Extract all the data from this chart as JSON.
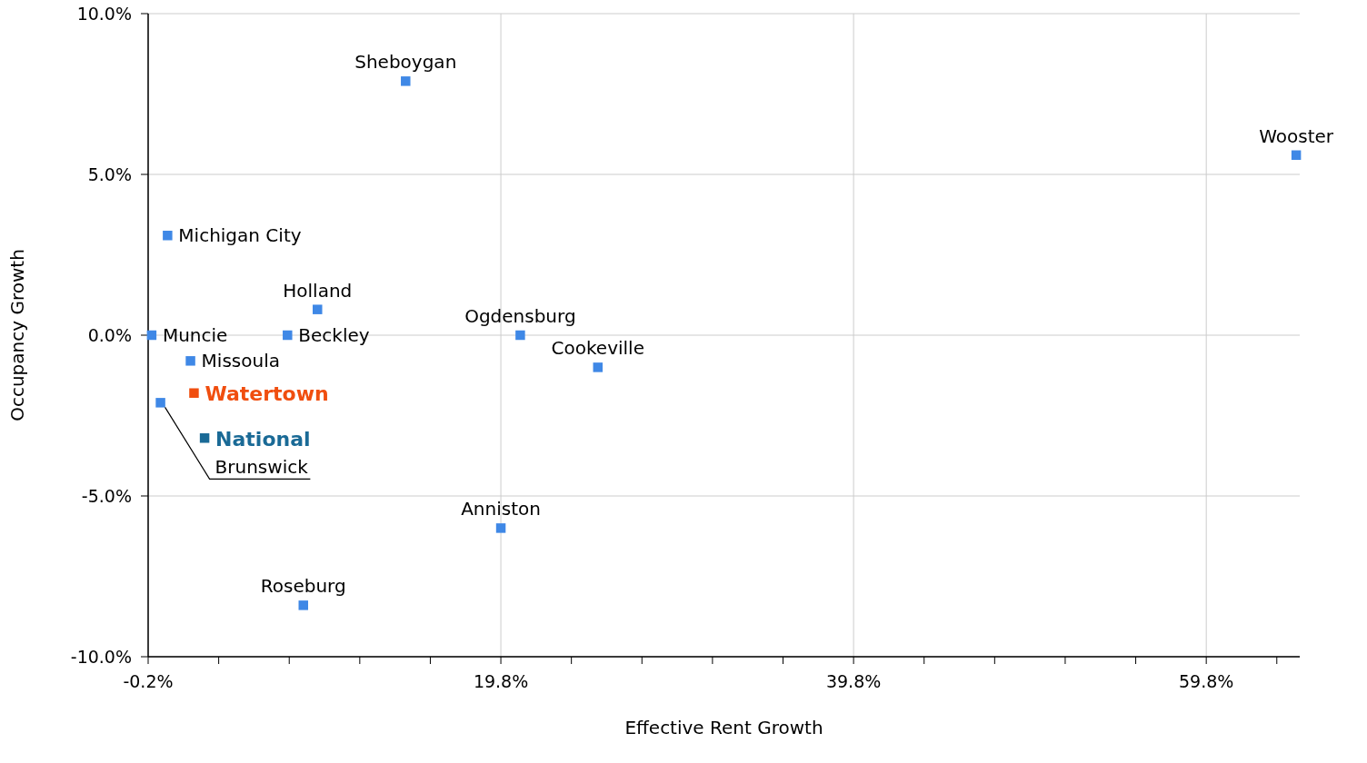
{
  "chart_data": {
    "type": "scatter",
    "xlabel": "Effective Rent Growth",
    "ylabel": "Occupancy Growth",
    "marker": "square",
    "grid": true,
    "xlim": [
      -0.2,
      65.1
    ],
    "ylim": [
      -10,
      10
    ],
    "xticks": [
      {
        "value": -0.2,
        "label": "-0.2%"
      },
      {
        "value": 3.8,
        "label": null
      },
      {
        "value": 7.8,
        "label": null
      },
      {
        "value": 11.8,
        "label": null
      },
      {
        "value": 15.8,
        "label": null
      },
      {
        "value": 19.8,
        "label": "19.8%"
      },
      {
        "value": 23.8,
        "label": null
      },
      {
        "value": 27.8,
        "label": null
      },
      {
        "value": 31.8,
        "label": null
      },
      {
        "value": 35.8,
        "label": null
      },
      {
        "value": 39.8,
        "label": "39.8%"
      },
      {
        "value": 43.8,
        "label": null
      },
      {
        "value": 47.8,
        "label": null
      },
      {
        "value": 51.8,
        "label": null
      },
      {
        "value": 55.8,
        "label": null
      },
      {
        "value": 59.8,
        "label": "59.8%"
      },
      {
        "value": 63.8,
        "label": null
      }
    ],
    "yticks": [
      {
        "value": -10,
        "label": "-10.0%"
      },
      {
        "value": -5,
        "label": "-5.0%"
      },
      {
        "value": 0,
        "label": "0.0%"
      },
      {
        "value": 5,
        "label": "5.0%"
      },
      {
        "value": 10,
        "label": "10.0%"
      }
    ],
    "series": [
      {
        "name": "Sheboygan",
        "color": "#3f88e6",
        "x": [
          14.4
        ],
        "values": [
          7.9
        ]
      },
      {
        "name": "Wooster",
        "color": "#3f88e6",
        "x": [
          64.9
        ],
        "values": [
          5.6
        ]
      },
      {
        "name": "Michigan City",
        "color": "#3f88e6",
        "x": [
          0.9
        ],
        "values": [
          3.1
        ]
      },
      {
        "name": "Holland",
        "color": "#3f88e6",
        "x": [
          9.4
        ],
        "values": [
          0.8
        ]
      },
      {
        "name": "Ogdensburg",
        "color": "#3f88e6",
        "x": [
          20.9
        ],
        "values": [
          0.0
        ]
      },
      {
        "name": "Muncie",
        "color": "#3f88e6",
        "x": [
          0.0
        ],
        "values": [
          0.0
        ]
      },
      {
        "name": "Beckley",
        "color": "#3f88e6",
        "x": [
          7.7
        ],
        "values": [
          0.0
        ]
      },
      {
        "name": "Missoula",
        "color": "#3f88e6",
        "x": [
          2.2
        ],
        "values": [
          -0.8
        ]
      },
      {
        "name": "Cookeville",
        "color": "#3f88e6",
        "x": [
          25.3
        ],
        "values": [
          -1.0
        ]
      },
      {
        "name": "Watertown",
        "color": "#f04e0f",
        "x": [
          2.4
        ],
        "values": [
          -1.8
        ]
      },
      {
        "name": "Brunswick",
        "color": "#3f88e6",
        "x": [
          0.5
        ],
        "values": [
          -2.1
        ]
      },
      {
        "name": "National",
        "color": "#1a6a96",
        "x": [
          3.0
        ],
        "values": [
          -3.2
        ]
      },
      {
        "name": "Anniston",
        "color": "#3f88e6",
        "x": [
          19.8
        ],
        "values": [
          -6.0
        ]
      },
      {
        "name": "Roseburg",
        "color": "#3f88e6",
        "x": [
          8.6
        ],
        "values": [
          -8.4
        ]
      }
    ]
  }
}
